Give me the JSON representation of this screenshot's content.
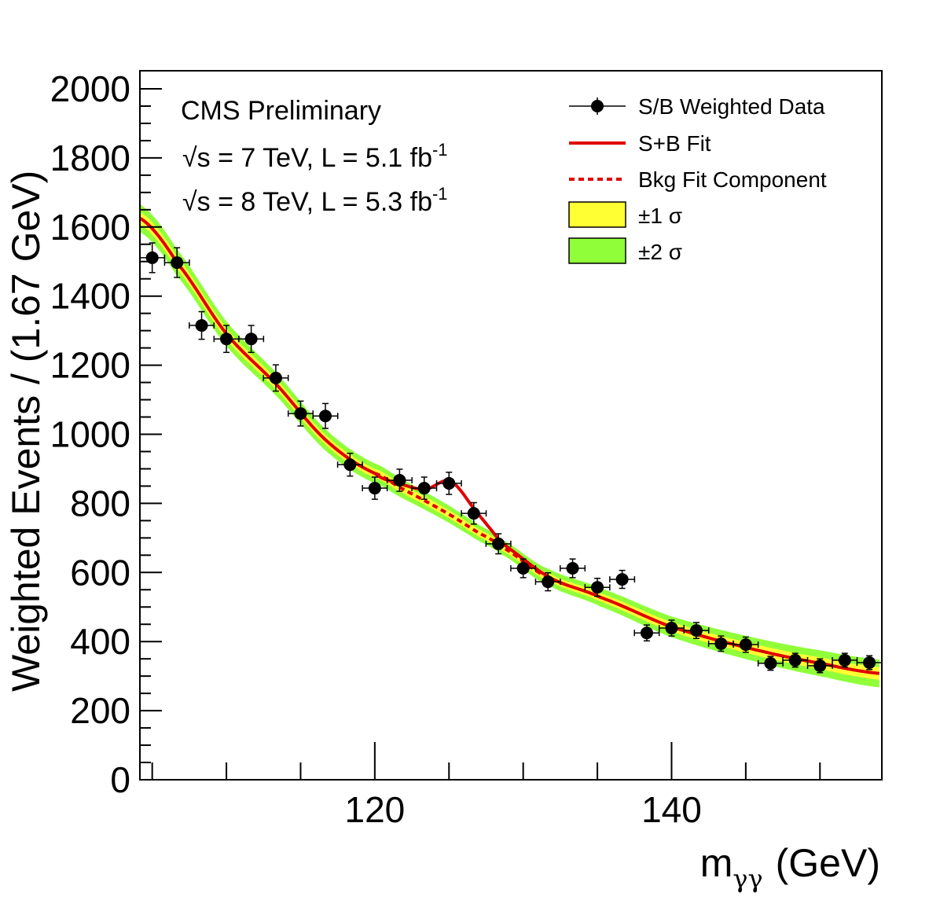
{
  "chart_data": {
    "type": "scatter",
    "xlabel": "m",
    "xlabel_sub": "γγ",
    "xlabel_unit": "(GeV)",
    "ylabel": "Weighted Events / (1.67 GeV)",
    "xlim": [
      104.17,
      154.17
    ],
    "ylim": [
      0,
      2050
    ],
    "x_ticks": [
      120,
      140
    ],
    "x_minor_step": 5,
    "y_ticks": [
      0,
      200,
      400,
      600,
      800,
      1000,
      1200,
      1400,
      1600,
      1800,
      2000
    ],
    "y_minor_step": 50,
    "grid": false,
    "legend_placement": "top-right",
    "annotations": {
      "experiment": "CMS Preliminary",
      "line1_sqrt": "√s",
      "line1": " = 7 TeV, L = 5.1 fb",
      "line1_sup": "-1",
      "line2_sqrt": "√s",
      "line2": " = 8 TeV, L = 5.3 fb",
      "line2_sup": "-1"
    },
    "legend": [
      {
        "label": "S/B Weighted Data",
        "style": "marker"
      },
      {
        "label": "S+B Fit",
        "style": "line"
      },
      {
        "label": "Bkg Fit Component",
        "style": "dashed"
      },
      {
        "label": "±1 σ",
        "style": "box",
        "color": "#ffff33"
      },
      {
        "label": "±2 σ",
        "style": "box",
        "color": "#90ff3a"
      }
    ],
    "colors": {
      "fit": "#e00000",
      "band1": "#ffff33",
      "band2": "#90ff3a",
      "data": "#000000"
    },
    "data_points": {
      "bin_width": 1.67,
      "x": [
        105.0,
        106.67,
        108.33,
        110.0,
        111.67,
        113.33,
        115.0,
        116.67,
        118.33,
        120.0,
        121.67,
        123.33,
        125.0,
        126.67,
        128.33,
        130.0,
        131.67,
        133.33,
        135.0,
        136.67,
        138.33,
        140.0,
        141.67,
        143.33,
        145.0,
        146.67,
        148.33,
        150.0,
        151.67,
        153.33
      ],
      "y": [
        1511,
        1497,
        1315,
        1276,
        1276,
        1163,
        1060,
        1053,
        912,
        844,
        867,
        844,
        858,
        771,
        683,
        612,
        573,
        612,
        557,
        580,
        425,
        439,
        432,
        394,
        391,
        337,
        346,
        330,
        346,
        339
      ],
      "yerr": [
        43,
        43,
        40,
        39,
        39,
        38,
        36,
        36,
        33,
        32,
        32,
        32,
        32,
        31,
        29,
        27,
        26,
        27,
        26,
        26,
        23,
        23,
        23,
        22,
        22,
        20,
        20,
        20,
        20,
        20
      ]
    },
    "sb_fit": {
      "x": [
        104.2,
        106.7,
        110.0,
        113.4,
        116.7,
        120.0,
        121.7,
        123.4,
        125.1,
        126.8,
        128.5,
        131.8,
        135.2,
        139.9,
        145.2,
        150.3,
        154.2
      ],
      "y": [
        1625,
        1495,
        1291,
        1143,
        983,
        887,
        857,
        841,
        864,
        778,
        687,
        585,
        528,
        444,
        381,
        335,
        307
      ]
    },
    "bkg_fit": {
      "x": [
        120.0,
        121.7,
        123.4,
        125.1,
        126.8,
        128.5,
        131.8
      ],
      "y": [
        887,
        846,
        807,
        766,
        720,
        675,
        585
      ]
    },
    "band_halfwidth": {
      "sigma1": 10,
      "sigma2": 22
    }
  }
}
